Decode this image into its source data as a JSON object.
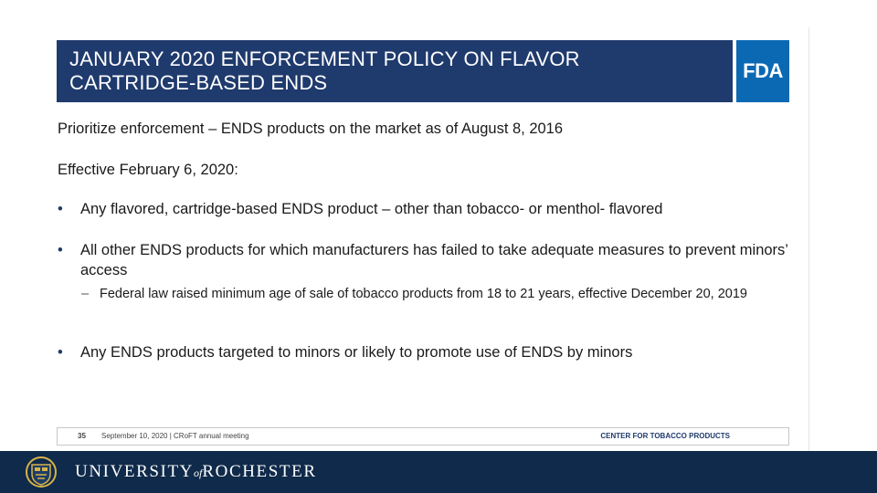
{
  "slide": {
    "title_line1": "JANUARY 2020 ENFORCEMENT POLICY ON FLAVOR",
    "title_line2": "CARTRIDGE-BASED ENDS",
    "logo": "FDA",
    "intro": "Prioritize enforcement – ENDS products on the market as of August 8, 2016",
    "effective": "Effective February 6, 2020:",
    "bullets": [
      {
        "text": "Any flavored, cartridge-based ENDS product – other than tobacco- or menthol- flavored"
      },
      {
        "text": "All other ENDS products for which manufacturers has failed to take adequate measures to prevent minors’ access"
      },
      {
        "text": "Any ENDS products targeted to minors or likely to promote use of ENDS by minors"
      }
    ],
    "sub_bullet": "Federal law raised minimum age of sale of tobacco products from 18 to 21 years, effective December 20, 2019",
    "bullet_glyph": "•",
    "dash_glyph": "–",
    "footer": {
      "page": "35",
      "meeting": "September 10, 2020 | CRoFT annual meeting",
      "center": "CENTER FOR TOBACCO PRODUCTS"
    }
  },
  "branding": {
    "university_pre": "UNIVERSITY",
    "university_of": "of",
    "university_post": "ROCHESTER",
    "bar_color": "#0f2a4a"
  },
  "colors": {
    "title_bar": "#1f3a6d",
    "fda_blue": "#0b69b4"
  }
}
